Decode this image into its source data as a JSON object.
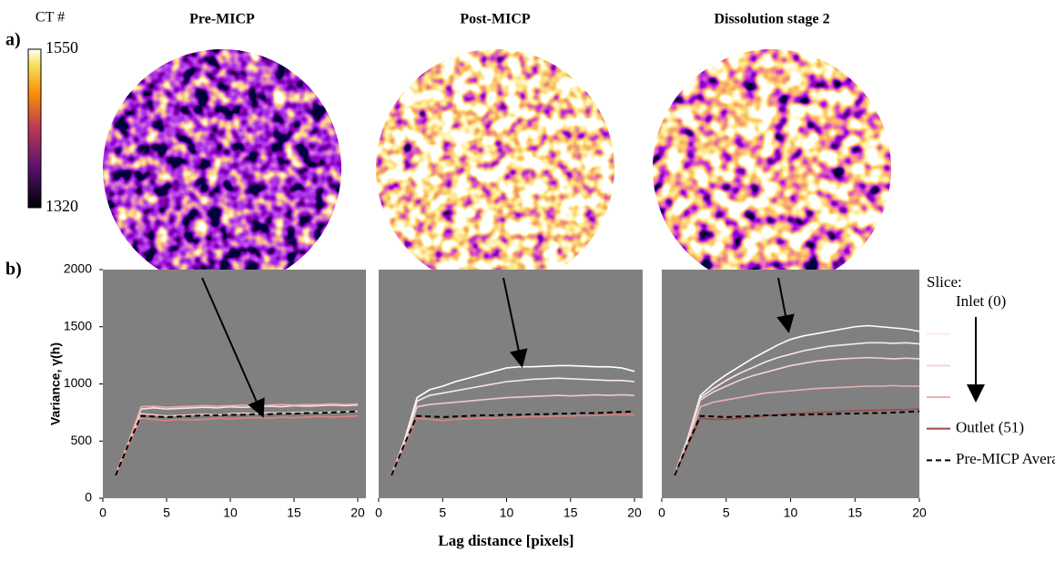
{
  "panel_labels": [
    "a)",
    "b)"
  ],
  "colorbar": {
    "title": "CT #",
    "ticks": [
      1320,
      1550
    ],
    "lim": [
      1320,
      1550
    ]
  },
  "images": [
    {
      "title": "Pre-MICP"
    },
    {
      "title": "Post-MICP"
    },
    {
      "title": "Dissolution stage 2"
    }
  ],
  "chart_data": [
    {
      "type": "line",
      "ylabel": "Variance, γ(h)",
      "x": [
        1,
        2,
        3,
        4,
        5,
        6,
        7,
        8,
        9,
        10,
        11,
        12,
        13,
        14,
        15,
        16,
        17,
        18,
        19,
        20
      ],
      "xlim": [
        0,
        20
      ],
      "xticks": [
        0,
        5,
        10,
        15,
        20
      ],
      "ylim": [
        0,
        2000
      ],
      "yticks": [
        0,
        500,
        1000,
        1500,
        2000
      ],
      "series": [
        {
          "color": "#f4e4e4",
          "values": [
            200,
            480,
            780,
            790,
            780,
            785,
            790,
            795,
            790,
            800,
            795,
            800,
            805,
            800,
            810,
            805,
            810,
            815,
            810,
            815
          ]
        },
        {
          "color": "#e8a8a8",
          "values": [
            210,
            490,
            800,
            805,
            795,
            800,
            805,
            810,
            805,
            810,
            815,
            810,
            815,
            820,
            815,
            820,
            820,
            825,
            820,
            825
          ]
        },
        {
          "color": "#f0c8c8",
          "values": [
            210,
            470,
            740,
            730,
            720,
            725,
            730,
            735,
            730,
            740,
            745,
            740,
            750,
            745,
            750,
            755,
            750,
            755,
            760,
            760
          ]
        },
        {
          "color": "#e08080",
          "values": [
            200,
            460,
            700,
            690,
            680,
            690,
            685,
            690,
            700,
            695,
            700,
            705,
            700,
            710,
            705,
            710,
            715,
            710,
            715,
            720
          ]
        },
        {
          "color": "#000000",
          "dashed": true,
          "values": [
            200,
            470,
            720,
            715,
            710,
            715,
            720,
            725,
            725,
            730,
            730,
            735,
            735,
            740,
            740,
            745,
            745,
            750,
            755,
            760
          ]
        }
      ]
    },
    {
      "type": "line",
      "xlabel": "Lag distance [pixels]",
      "x": [
        1,
        2,
        3,
        4,
        5,
        6,
        7,
        8,
        9,
        10,
        11,
        12,
        13,
        14,
        15,
        16,
        17,
        18,
        19,
        20
      ],
      "xlim": [
        0,
        20
      ],
      "xticks": [
        0,
        5,
        10,
        15,
        20
      ],
      "ylim": [
        0,
        2000
      ],
      "series": [
        {
          "color": "#ffffff",
          "values": [
            200,
            500,
            880,
            950,
            980,
            1020,
            1050,
            1080,
            1110,
            1140,
            1150,
            1150,
            1155,
            1160,
            1160,
            1155,
            1150,
            1150,
            1140,
            1110
          ]
        },
        {
          "color": "#fbeaea",
          "values": [
            210,
            480,
            850,
            900,
            920,
            940,
            960,
            980,
            1000,
            1020,
            1030,
            1040,
            1045,
            1050,
            1045,
            1040,
            1035,
            1030,
            1030,
            1020
          ]
        },
        {
          "color": "#f0c8c8",
          "values": [
            205,
            470,
            800,
            820,
            830,
            840,
            850,
            860,
            870,
            880,
            885,
            890,
            895,
            900,
            895,
            900,
            905,
            900,
            905,
            900
          ]
        },
        {
          "color": "#e08080",
          "values": [
            200,
            460,
            700,
            690,
            680,
            690,
            695,
            700,
            700,
            705,
            710,
            715,
            715,
            720,
            720,
            725,
            725,
            730,
            730,
            730
          ]
        },
        {
          "color": "#000000",
          "dashed": true,
          "values": [
            200,
            470,
            720,
            715,
            710,
            715,
            720,
            725,
            725,
            730,
            730,
            735,
            735,
            740,
            740,
            745,
            745,
            750,
            755,
            760
          ]
        }
      ]
    },
    {
      "type": "line",
      "x": [
        1,
        2,
        3,
        4,
        5,
        6,
        7,
        8,
        9,
        10,
        11,
        12,
        13,
        14,
        15,
        16,
        17,
        18,
        19,
        20
      ],
      "xlim": [
        0,
        20
      ],
      "xticks": [
        0,
        5,
        10,
        15,
        20
      ],
      "ylim": [
        0,
        2000
      ],
      "legend": {
        "title": "Slice:"
      },
      "series": [
        {
          "name": "Inlet (0)",
          "color": "#ffffff",
          "values": [
            200,
            520,
            900,
            1000,
            1080,
            1150,
            1220,
            1280,
            1340,
            1390,
            1420,
            1440,
            1460,
            1480,
            1500,
            1510,
            1500,
            1490,
            1480,
            1460
          ]
        },
        {
          "color": "#fbeaea",
          "values": [
            210,
            510,
            880,
            960,
            1030,
            1090,
            1140,
            1190,
            1230,
            1260,
            1290,
            1310,
            1330,
            1340,
            1350,
            1360,
            1360,
            1355,
            1360,
            1350
          ]
        },
        {
          "color": "#f4d4d4",
          "values": [
            205,
            500,
            860,
            930,
            980,
            1030,
            1070,
            1100,
            1130,
            1160,
            1180,
            1200,
            1210,
            1220,
            1225,
            1230,
            1225,
            1220,
            1225,
            1220
          ]
        },
        {
          "color": "#eab0b0",
          "values": [
            200,
            480,
            800,
            840,
            860,
            880,
            900,
            920,
            930,
            940,
            950,
            960,
            965,
            970,
            975,
            980,
            980,
            985,
            980,
            980
          ]
        },
        {
          "name": "Outlet (51)",
          "color": "#a04848",
          "values": [
            200,
            460,
            700,
            690,
            690,
            700,
            710,
            720,
            730,
            740,
            745,
            750,
            755,
            760,
            765,
            770,
            770,
            775,
            775,
            780
          ]
        },
        {
          "name": "Pre-MICP Average",
          "color": "#000000",
          "dashed": true,
          "values": [
            200,
            470,
            720,
            715,
            710,
            715,
            720,
            725,
            725,
            730,
            730,
            735,
            735,
            740,
            740,
            745,
            745,
            750,
            755,
            760
          ]
        }
      ]
    }
  ]
}
